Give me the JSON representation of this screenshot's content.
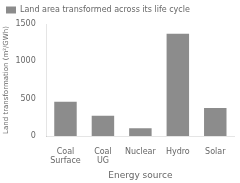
{
  "chart_data": {
    "type": "bar",
    "categories": [
      "Coal Surface",
      "Coal UG",
      "Nuclear",
      "Hydro",
      "Solar"
    ],
    "values": [
      460,
      270,
      105,
      1370,
      375
    ],
    "color": "#8c8c8c",
    "series_name": "Land area transformed across its life cycle",
    "xlabel": "Energy source",
    "ylabel": "Land transformation (m²/GWh)",
    "ylim": [
      0,
      1500
    ],
    "yticks": [
      0,
      500,
      1000,
      1500
    ],
    "grid": false,
    "legend": "upper left"
  }
}
